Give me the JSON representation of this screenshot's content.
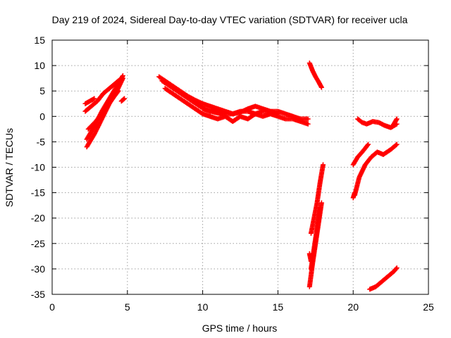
{
  "chart_data": {
    "type": "scatter",
    "title": "Day 219 of 2024, Sidereal Day-to-day VTEC variation (SDTVAR) for receiver ucla",
    "xlabel": "GPS time / hours",
    "ylabel": "SDTVAR / TECUs",
    "xlim": [
      0,
      25
    ],
    "ylim": [
      -35,
      15
    ],
    "xticks": [
      0,
      5,
      10,
      15,
      20,
      25
    ],
    "yticks": [
      15,
      10,
      5,
      0,
      -5,
      -10,
      -15,
      -20,
      -25,
      -30,
      -35
    ],
    "grid": true,
    "legend": "none",
    "marker": "plus",
    "color": "#ff0000",
    "series": [
      {
        "x": [
          2.3,
          2.8,
          3.3,
          3.8,
          4.3,
          4.7
        ],
        "y": [
          -6.0,
          -3.5,
          -0.5,
          2.5,
          5.0,
          7.5
        ]
      },
      {
        "x": [
          2.3,
          2.8,
          3.3,
          3.8,
          4.3,
          4.7
        ],
        "y": [
          -4.5,
          -2.0,
          1.0,
          3.5,
          6.0,
          8.0
        ]
      },
      {
        "x": [
          2.2,
          2.6,
          3.0,
          3.4,
          3.8,
          4.2,
          4.6
        ],
        "y": [
          1.0,
          2.0,
          3.0,
          4.5,
          5.5,
          6.5,
          7.5
        ]
      },
      {
        "x": [
          2.2,
          2.5,
          2.8
        ],
        "y": [
          2.5,
          3.0,
          3.5
        ]
      },
      {
        "x": [
          2.4,
          2.9,
          3.4,
          3.9,
          4.4
        ],
        "y": [
          -2.5,
          -1.0,
          1.0,
          3.0,
          5.0
        ]
      },
      {
        "x": [
          4.6,
          4.8
        ],
        "y": [
          3.0,
          3.5
        ]
      },
      {
        "x": [
          7.1,
          7.5,
          8.0,
          8.5,
          9.0,
          9.5,
          10.0,
          10.5,
          11.0
        ],
        "y": [
          7.8,
          7.0,
          6.0,
          5.0,
          4.0,
          3.2,
          2.5,
          2.0,
          1.5
        ]
      },
      {
        "x": [
          7.3,
          7.8,
          8.3,
          8.8,
          9.3,
          9.8,
          10.3,
          10.8,
          11.3
        ],
        "y": [
          7.0,
          6.0,
          5.0,
          4.0,
          3.0,
          2.0,
          1.2,
          0.8,
          0.5
        ]
      },
      {
        "x": [
          7.5,
          8.0,
          8.5,
          9.0,
          9.5,
          10.0,
          10.5
        ],
        "y": [
          5.5,
          4.5,
          3.5,
          2.5,
          1.5,
          0.5,
          0.0
        ]
      },
      {
        "x": [
          10.0,
          10.5,
          11.0,
          11.5,
          12.0,
          12.5,
          13.0,
          13.5,
          14.0,
          14.5,
          15.0,
          15.5,
          16.0,
          16.5,
          17.0
        ],
        "y": [
          1.5,
          1.0,
          1.5,
          1.0,
          0.5,
          0.8,
          1.5,
          2.0,
          1.5,
          1.0,
          1.0,
          0.5,
          0.0,
          -0.5,
          -0.5
        ]
      },
      {
        "x": [
          10.5,
          11.0,
          11.5,
          12.0,
          12.5,
          13.0,
          13.5,
          14.0,
          14.5,
          15.0,
          15.5,
          16.0,
          16.5,
          17.0
        ],
        "y": [
          0.0,
          -0.5,
          0.0,
          -1.0,
          0.0,
          -0.5,
          0.5,
          0.0,
          0.5,
          0.0,
          -0.5,
          -0.5,
          -1.0,
          -1.5
        ]
      },
      {
        "x": [
          11.0,
          11.5,
          12.0,
          12.5,
          13.0,
          13.5,
          14.0,
          14.5,
          15.0
        ],
        "y": [
          1.0,
          0.5,
          0.5,
          1.0,
          1.0,
          0.5,
          1.0,
          1.0,
          0.5
        ]
      },
      {
        "x": [
          17.1,
          17.3,
          17.5,
          17.7,
          17.9
        ],
        "y": [
          10.5,
          9.0,
          7.8,
          6.8,
          5.7
        ]
      },
      {
        "x": [
          17.2,
          17.4,
          17.6,
          17.8,
          18.0
        ],
        "y": [
          -23.0,
          -20.0,
          -17.0,
          -13.0,
          -9.5
        ]
      },
      {
        "x": [
          17.1,
          17.3,
          17.5,
          17.7,
          17.9
        ],
        "y": [
          -33.5,
          -29.0,
          -25.0,
          -21.0,
          -17.0
        ]
      },
      {
        "x": [
          17.2,
          17.4,
          17.6,
          17.8
        ],
        "y": [
          -30.0,
          -26.0,
          -22.0,
          -18.0
        ]
      },
      {
        "x": [
          17.1,
          17.2
        ],
        "y": [
          -27.0,
          -28.5
        ]
      },
      {
        "x": [
          20.3,
          20.6,
          20.9,
          21.3,
          21.7,
          22.1,
          22.5,
          22.9
        ],
        "y": [
          -0.5,
          -1.2,
          -1.5,
          -1.0,
          -1.2,
          -1.8,
          -2.2,
          -1.5
        ]
      },
      {
        "x": [
          22.6,
          22.8,
          22.9
        ],
        "y": [
          -2.0,
          -1.0,
          -0.5
        ]
      },
      {
        "x": [
          20.0,
          20.3,
          20.6,
          21.0
        ],
        "y": [
          -9.5,
          -8.0,
          -7.0,
          -5.5
        ]
      },
      {
        "x": [
          20.1,
          20.4,
          20.8,
          21.2,
          21.6,
          22.0,
          22.5,
          22.9
        ],
        "y": [
          -15.5,
          -12.0,
          -9.5,
          -8.0,
          -7.0,
          -7.5,
          -6.5,
          -5.5
        ]
      },
      {
        "x": [
          20.0,
          20.1
        ],
        "y": [
          -16.0,
          -15.0
        ]
      },
      {
        "x": [
          21.1,
          21.5,
          21.9,
          22.3,
          22.7,
          22.9
        ],
        "y": [
          -34.0,
          -33.5,
          -32.5,
          -31.5,
          -30.5,
          -29.8
        ]
      }
    ]
  }
}
